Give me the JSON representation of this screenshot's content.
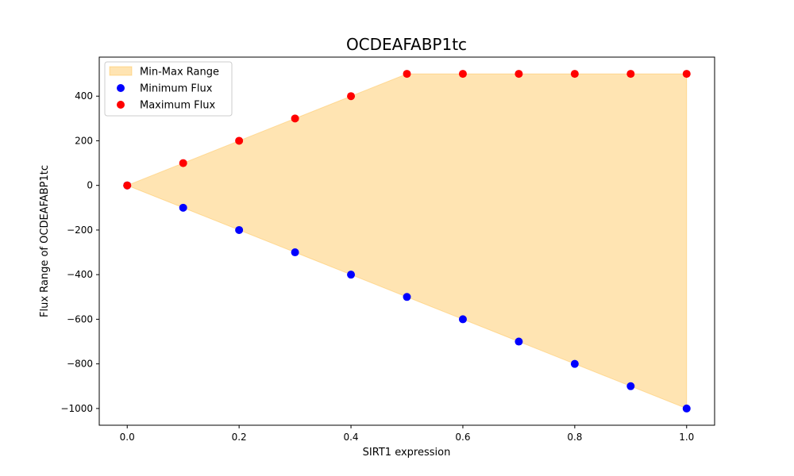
{
  "chart_data": {
    "type": "scatter",
    "title": "OCDEAFABP1tc",
    "xlabel": "SIRT1 expression",
    "ylabel": "Flux Range of OCDEAFABP1tc",
    "xlim": [
      -0.05,
      1.05
    ],
    "ylim": [
      -1075,
      575
    ],
    "x_ticks": [
      0.0,
      0.2,
      0.4,
      0.6,
      0.8,
      1.0
    ],
    "x_tick_labels": [
      "0.0",
      "0.2",
      "0.4",
      "0.6",
      "0.8",
      "1.0"
    ],
    "y_ticks": [
      -1000,
      -800,
      -600,
      -400,
      -200,
      0,
      200,
      400
    ],
    "y_tick_labels": [
      "−1000",
      "−800",
      "−600",
      "−400",
      "−200",
      "0",
      "200",
      "400"
    ],
    "x": [
      0.0,
      0.1,
      0.2,
      0.3,
      0.4,
      0.5,
      0.6,
      0.7,
      0.8,
      0.9,
      1.0
    ],
    "series": [
      {
        "name": "Minimum Flux",
        "color": "#0000ff",
        "values": [
          0,
          -100,
          -200,
          -300,
          -400,
          -500,
          -600,
          -700,
          -800,
          -900,
          -1000
        ]
      },
      {
        "name": "Maximum Flux",
        "color": "#ff0000",
        "values": [
          0,
          100,
          200,
          300,
          400,
          500,
          500,
          500,
          500,
          500,
          500
        ]
      }
    ],
    "fill": {
      "name": "Min-Max Range",
      "color": "#ffa500",
      "opacity": 0.3
    },
    "legend": {
      "placement": "top-left",
      "entries": [
        "Min-Max Range",
        "Minimum Flux",
        "Maximum Flux"
      ]
    },
    "grid": false
  }
}
